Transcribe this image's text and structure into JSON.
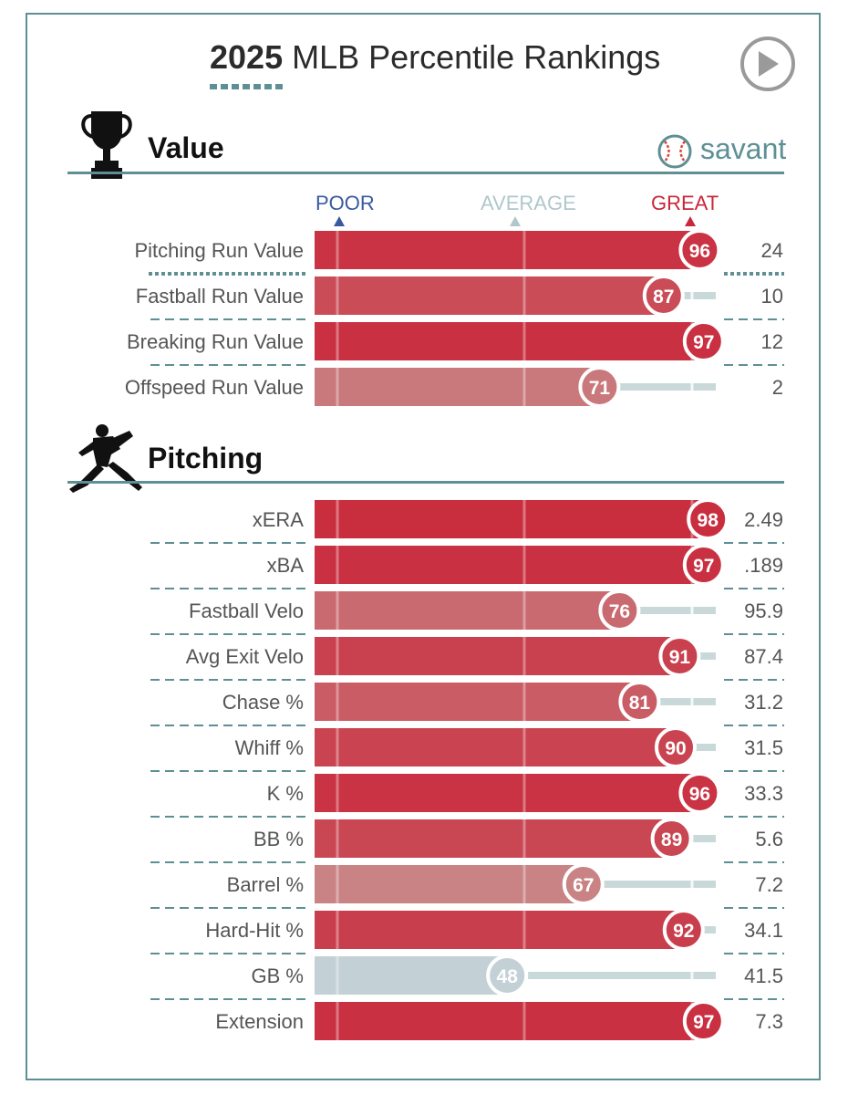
{
  "header": {
    "title_year": "2025",
    "title_rest": " MLB Percentile Rankings",
    "play_icon": "play-circle-icon"
  },
  "sections": [
    {
      "title": "Value",
      "icon": "trophy-icon"
    },
    {
      "title": "Pitching",
      "icon": "pitcher-silhouette-icon"
    }
  ],
  "branding": {
    "text": "savant",
    "icon": "baseball-icon"
  },
  "scale": {
    "poor": "POOR",
    "average": "AVERAGE",
    "great": "GREAT"
  },
  "colors": {
    "accent": "#5d8f95",
    "poor": "#3a5aa0",
    "average_label": "#b0c7cb",
    "great": "#c9283a",
    "track": "#c9d9da"
  },
  "chart_data": {
    "type": "bar",
    "title": "2025 MLB Percentile Rankings",
    "xlim": [
      0,
      100
    ],
    "groups": [
      {
        "name": "Value",
        "metrics": [
          {
            "label": "Pitching Run Value",
            "percentile": 96,
            "value": "24"
          },
          {
            "label": "Fastball Run Value",
            "percentile": 87,
            "value": "10"
          },
          {
            "label": "Breaking Run Value",
            "percentile": 97,
            "value": "12"
          },
          {
            "label": "Offspeed Run Value",
            "percentile": 71,
            "value": "2"
          }
        ]
      },
      {
        "name": "Pitching",
        "metrics": [
          {
            "label": "xERA",
            "percentile": 98,
            "value": "2.49"
          },
          {
            "label": "xBA",
            "percentile": 97,
            "value": ".189"
          },
          {
            "label": "Fastball Velo",
            "percentile": 76,
            "value": "95.9"
          },
          {
            "label": "Avg Exit Velo",
            "percentile": 91,
            "value": "87.4"
          },
          {
            "label": "Chase %",
            "percentile": 81,
            "value": "31.2"
          },
          {
            "label": "Whiff %",
            "percentile": 90,
            "value": "31.5"
          },
          {
            "label": "K %",
            "percentile": 96,
            "value": "33.3"
          },
          {
            "label": "BB %",
            "percentile": 89,
            "value": "5.6"
          },
          {
            "label": "Barrel %",
            "percentile": 67,
            "value": "7.2"
          },
          {
            "label": "Hard-Hit %",
            "percentile": 92,
            "value": "34.1"
          },
          {
            "label": "GB %",
            "percentile": 48,
            "value": "41.5"
          },
          {
            "label": "Extension",
            "percentile": 97,
            "value": "7.3"
          }
        ]
      }
    ]
  }
}
